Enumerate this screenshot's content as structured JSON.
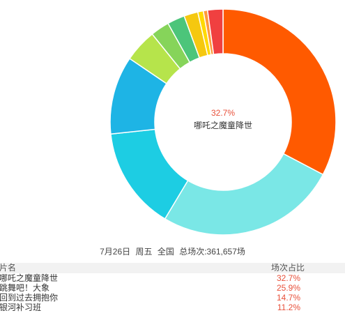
{
  "colors": {
    "accent": "#e8503a",
    "slices": [
      "#ff5a00",
      "#7ae7e6",
      "#1dcde3",
      "#1eb4e5",
      "#b6e44b",
      "#86d45a",
      "#4cc57a",
      "#f5c80f",
      "#ffd900",
      "#ff9a3b",
      "#f04040"
    ]
  },
  "chart_data": {
    "type": "pie",
    "variant": "donut",
    "center_label": {
      "value": "32.7%",
      "name": "哪吒之魔童降世"
    },
    "values": [
      32.7,
      25.9,
      14.7,
      11.2,
      4.7,
      2.7,
      2.5,
      2.0,
      0.8,
      0.6,
      2.2
    ],
    "labels": [
      "哪吒之魔童降世",
      "跳舞吧！大象",
      "回到过去拥抱你",
      "银河补习班",
      "",
      "",
      "",
      "",
      "",
      "",
      ""
    ]
  },
  "summary": {
    "date": "7月26日",
    "weekday": "周五",
    "region": "全国",
    "total": "总场次:361,657场"
  },
  "table": {
    "headers": {
      "name": "片名",
      "share": "场次占比"
    },
    "rows": [
      {
        "name": "哪吒之魔童降世",
        "share": "32.7%"
      },
      {
        "name": "跳舞吧！大象",
        "share": "25.9%"
      },
      {
        "name": "回到过去拥抱你",
        "share": "14.7%"
      },
      {
        "name": "银河补习班",
        "share": "11.2%"
      }
    ]
  }
}
